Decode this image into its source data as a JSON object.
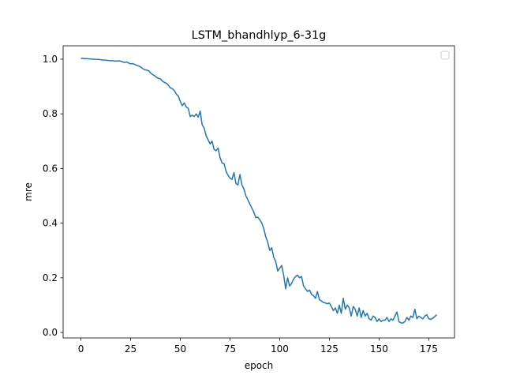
{
  "chart_data": {
    "type": "line",
    "title": "LSTM_bhandhlyp_6-31g",
    "xlabel": "epoch",
    "ylabel": "mre",
    "x": [
      0,
      1,
      2,
      3,
      4,
      5,
      6,
      7,
      8,
      9,
      10,
      11,
      12,
      13,
      14,
      15,
      16,
      17,
      18,
      19,
      20,
      21,
      22,
      23,
      24,
      25,
      26,
      27,
      28,
      29,
      30,
      31,
      32,
      33,
      34,
      35,
      36,
      37,
      38,
      39,
      40,
      41,
      42,
      43,
      44,
      45,
      46,
      47,
      48,
      49,
      50,
      51,
      52,
      53,
      54,
      55,
      56,
      57,
      58,
      59,
      60,
      61,
      62,
      63,
      64,
      65,
      66,
      67,
      68,
      69,
      70,
      71,
      72,
      73,
      74,
      75,
      76,
      77,
      78,
      79,
      80,
      81,
      82,
      83,
      84,
      85,
      86,
      87,
      88,
      89,
      90,
      91,
      92,
      93,
      94,
      95,
      96,
      97,
      98,
      99,
      100,
      101,
      102,
      103,
      104,
      105,
      106,
      107,
      108,
      109,
      110,
      111,
      112,
      113,
      114,
      115,
      116,
      117,
      118,
      119,
      120,
      121,
      122,
      123,
      124,
      125,
      126,
      127,
      128,
      129,
      130,
      131,
      132,
      133,
      134,
      135,
      136,
      137,
      138,
      139,
      140,
      141,
      142,
      143,
      144,
      145,
      146,
      147,
      148,
      149,
      150,
      151,
      152,
      153,
      154,
      155,
      156,
      157,
      158,
      159,
      160,
      161,
      162,
      163,
      164,
      165,
      166,
      167,
      168,
      169,
      170,
      171,
      172,
      173,
      174,
      175,
      176,
      177,
      178,
      179
    ],
    "series": [
      {
        "color": "#1f77b4",
        "values": [
          1.003,
          1.003,
          1.002,
          1.002,
          1.001,
          1.001,
          1.0,
          1.0,
          0.999,
          0.999,
          0.998,
          0.997,
          0.997,
          0.996,
          0.995,
          0.994,
          0.995,
          0.993,
          0.993,
          0.994,
          0.993,
          0.99,
          0.988,
          0.99,
          0.986,
          0.983,
          0.984,
          0.981,
          0.978,
          0.975,
          0.972,
          0.966,
          0.962,
          0.96,
          0.958,
          0.95,
          0.944,
          0.94,
          0.934,
          0.93,
          0.928,
          0.92,
          0.915,
          0.912,
          0.905,
          0.895,
          0.892,
          0.885,
          0.872,
          0.865,
          0.845,
          0.83,
          0.84,
          0.825,
          0.82,
          0.79,
          0.795,
          0.79,
          0.8,
          0.788,
          0.81,
          0.76,
          0.748,
          0.72,
          0.705,
          0.69,
          0.7,
          0.67,
          0.665,
          0.675,
          0.64,
          0.62,
          0.618,
          0.59,
          0.575,
          0.565,
          0.56,
          0.585,
          0.545,
          0.54,
          0.578,
          0.54,
          0.525,
          0.5,
          0.485,
          0.47,
          0.455,
          0.44,
          0.42,
          0.422,
          0.412,
          0.4,
          0.38,
          0.35,
          0.33,
          0.3,
          0.31,
          0.275,
          0.26,
          0.225,
          0.235,
          0.245,
          0.21,
          0.16,
          0.2,
          0.17,
          0.18,
          0.195,
          0.205,
          0.21,
          0.2,
          0.205,
          0.17,
          0.16,
          0.15,
          0.155,
          0.14,
          0.135,
          0.125,
          0.15,
          0.12,
          0.115,
          0.11,
          0.108,
          0.105,
          0.108,
          0.095,
          0.08,
          0.09,
          0.07,
          0.1,
          0.07,
          0.125,
          0.085,
          0.1,
          0.09,
          0.06,
          0.095,
          0.085,
          0.06,
          0.09,
          0.055,
          0.08,
          0.06,
          0.07,
          0.05,
          0.045,
          0.06,
          0.055,
          0.04,
          0.05,
          0.04,
          0.045,
          0.045,
          0.055,
          0.04,
          0.05,
          0.045,
          0.06,
          0.075,
          0.04,
          0.035,
          0.035,
          0.04,
          0.055,
          0.045,
          0.06,
          0.055,
          0.085,
          0.05,
          0.06,
          0.055,
          0.05,
          0.06,
          0.065,
          0.05,
          0.048,
          0.052,
          0.058,
          0.065
        ]
      }
    ],
    "xlim": [
      -8.95,
      187.95
    ],
    "xticks": [
      0,
      25,
      50,
      75,
      100,
      125,
      150,
      175
    ],
    "ylim": [
      -0.02,
      1.049
    ],
    "yticks": [
      {
        "value": 0,
        "label": "0.0"
      },
      0.2,
      0.4,
      0.6,
      0.8,
      {
        "value": 1,
        "label": "1.0"
      }
    ]
  }
}
